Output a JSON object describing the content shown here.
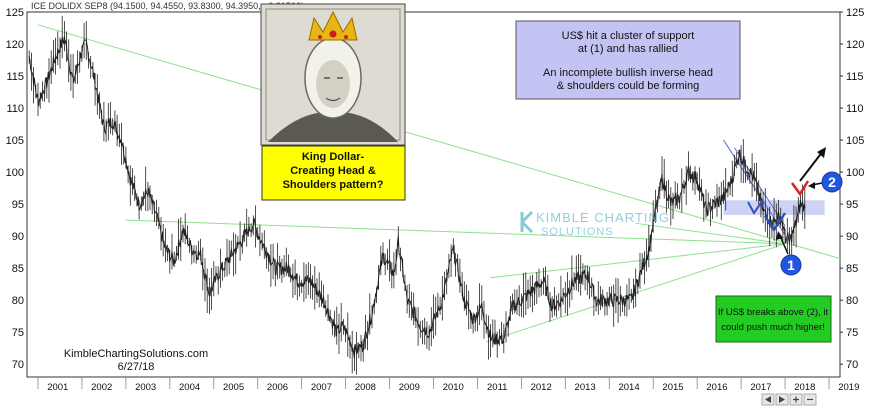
{
  "chart_data": {
    "type": "line",
    "header": "ICE DOLIDX SEP8 (94.1500, 94.4550, 93.8300, 94.3950, +0.21500)",
    "xlim": [
      2000.75,
      2019.25
    ],
    "ylim": [
      68,
      125
    ],
    "x_ticks": [
      "2001",
      "2002",
      "2003",
      "2004",
      "2005",
      "2006",
      "2007",
      "2008",
      "2009",
      "2010",
      "2011",
      "2012",
      "2013",
      "2014",
      "2015",
      "2016",
      "2017",
      "2018",
      "2019"
    ],
    "y_ticks": [
      70,
      75,
      80,
      85,
      90,
      95,
      100,
      105,
      110,
      115,
      120,
      125
    ],
    "grid": false,
    "series": [
      {
        "values": [
          [
            2000.8,
            118
          ],
          [
            2001.0,
            111
          ],
          [
            2001.2,
            114
          ],
          [
            2001.4,
            118
          ],
          [
            2001.6,
            121
          ],
          [
            2001.8,
            114
          ],
          [
            2002.0,
            119
          ],
          [
            2002.1,
            120
          ],
          [
            2002.3,
            114
          ],
          [
            2002.5,
            107
          ],
          [
            2002.7,
            108
          ],
          [
            2002.9,
            105
          ],
          [
            2003.1,
            99
          ],
          [
            2003.3,
            95
          ],
          [
            2003.5,
            97
          ],
          [
            2003.7,
            93
          ],
          [
            2003.9,
            88
          ],
          [
            2004.1,
            86
          ],
          [
            2004.3,
            91
          ],
          [
            2004.5,
            88
          ],
          [
            2004.7,
            87
          ],
          [
            2004.9,
            81
          ],
          [
            2005.1,
            84
          ],
          [
            2005.4,
            87
          ],
          [
            2005.7,
            90
          ],
          [
            2005.9,
            92
          ],
          [
            2006.1,
            89
          ],
          [
            2006.4,
            85
          ],
          [
            2006.7,
            85
          ],
          [
            2006.9,
            83
          ],
          [
            2007.2,
            83
          ],
          [
            2007.5,
            80
          ],
          [
            2007.8,
            75
          ],
          [
            2007.95,
            76
          ],
          [
            2008.2,
            72
          ],
          [
            2008.4,
            73
          ],
          [
            2008.6,
            78
          ],
          [
            2008.85,
            87
          ],
          [
            2009.1,
            84
          ],
          [
            2009.2,
            89
          ],
          [
            2009.4,
            80
          ],
          [
            2009.7,
            76
          ],
          [
            2009.9,
            75
          ],
          [
            2010.2,
            80
          ],
          [
            2010.45,
            88
          ],
          [
            2010.7,
            80
          ],
          [
            2010.9,
            77
          ],
          [
            2011.1,
            79
          ],
          [
            2011.3,
            74
          ],
          [
            2011.6,
            74
          ],
          [
            2011.8,
            79
          ],
          [
            2012.0,
            80
          ],
          [
            2012.5,
            83
          ],
          [
            2012.7,
            79
          ],
          [
            2012.9,
            80
          ],
          [
            2013.2,
            83
          ],
          [
            2013.5,
            84
          ],
          [
            2013.7,
            80
          ],
          [
            2013.9,
            80
          ],
          [
            2014.2,
            80
          ],
          [
            2014.5,
            80
          ],
          [
            2014.7,
            84
          ],
          [
            2014.9,
            88
          ],
          [
            2015.0,
            92
          ],
          [
            2015.2,
            99
          ],
          [
            2015.4,
            95
          ],
          [
            2015.6,
            96
          ],
          [
            2015.8,
            100
          ],
          [
            2016.0,
            99
          ],
          [
            2016.2,
            94
          ],
          [
            2016.4,
            95
          ],
          [
            2016.6,
            96
          ],
          [
            2016.8,
            99
          ],
          [
            2016.95,
            103
          ],
          [
            2017.1,
            101
          ],
          [
            2017.3,
            99
          ],
          [
            2017.5,
            94
          ],
          [
            2017.7,
            92
          ],
          [
            2017.9,
            93
          ],
          [
            2018.0,
            90
          ],
          [
            2018.1,
            89
          ],
          [
            2018.25,
            92
          ],
          [
            2018.35,
            95
          ],
          [
            2018.45,
            94.4
          ]
        ]
      }
    ],
    "trendlines": [
      {
        "from": [
          2001.0,
          123
        ],
        "to": [
          2019.25,
          86.5
        ]
      },
      {
        "from": [
          2003.0,
          92.5
        ],
        "to": [
          2018.0,
          88.8
        ]
      },
      {
        "from": [
          2011.2,
          73.5
        ],
        "to": [
          2018.0,
          88.8
        ]
      },
      {
        "from": [
          2011.3,
          83.5
        ],
        "to": [
          2018.0,
          88.8
        ]
      },
      {
        "from": [
          2014.6,
          92
        ],
        "to": [
          2018.0,
          88.8
        ]
      }
    ],
    "resistance_lines": [
      {
        "from": [
          2016.6,
          105
        ],
        "to": [
          2018.0,
          90.2
        ]
      },
      {
        "from": [
          2016.85,
          103.8
        ],
        "to": [
          2018.0,
          91.6
        ]
      }
    ],
    "support_band": {
      "x": [
        2016.6,
        2018.9
      ],
      "y": [
        93.3,
        95.6
      ]
    },
    "annotations": {
      "top_note_line1": "US$ hit a cluster of support",
      "top_note_line2": "at (1) and has rallied",
      "top_note_line3": "An incomplete bullish inverse head",
      "top_note_line4": "& shoulders could be forming",
      "king_line1": "King Dollar-",
      "king_line2": "Creating  Head &",
      "king_line3": "Shoulders pattern?",
      "breakout_line1": "If US$ breaks above (2), it",
      "breakout_line2": "could push much higher!",
      "marker1": "1",
      "marker2": "2",
      "site": "KimbleChartingSolutions.com",
      "date": "6/27/18",
      "watermark_line1": "KIMBLE CHARTING",
      "watermark_line2": "SOLUTIONS"
    },
    "colors": {
      "price": "#222222",
      "trendline": "#8ee08e",
      "resistance": "#5b6fd6",
      "support_band": "#aeb4ef",
      "note_box": "#c4c4f4",
      "king_box": "#ffff00",
      "breakout_box": "#22cc22",
      "marker": "#2156e0"
    }
  }
}
